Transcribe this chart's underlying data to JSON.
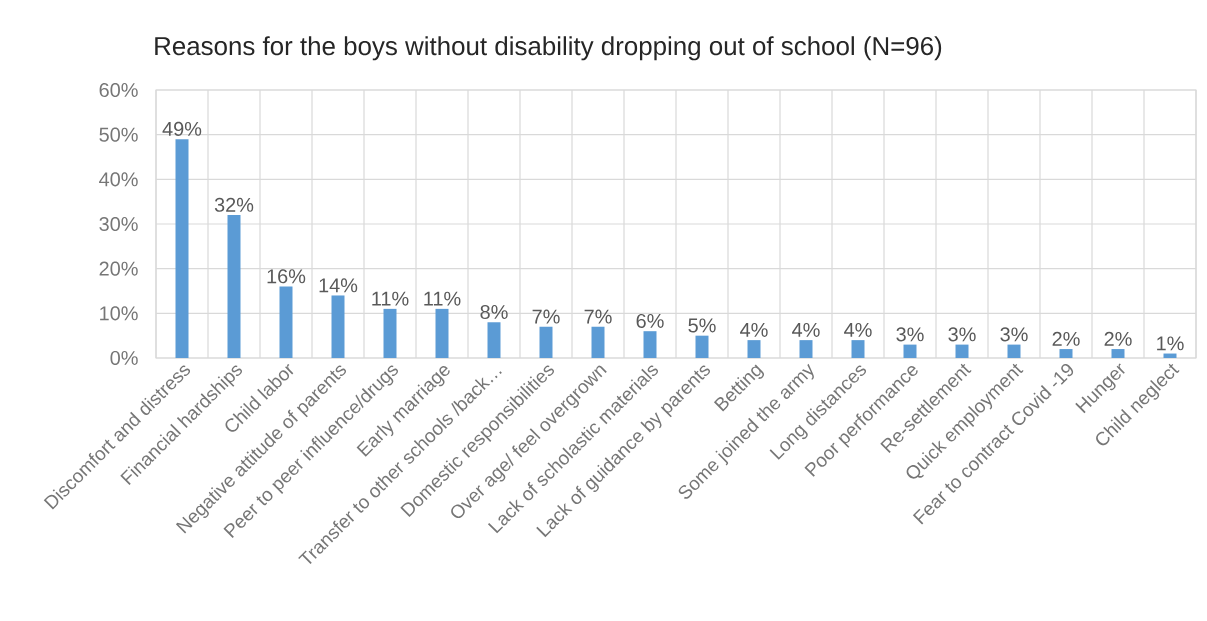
{
  "chart_data": {
    "type": "bar",
    "title": "Reasons for the boys without disability dropping out of school (N=96)",
    "categories": [
      "Discomfort and distress",
      "Financial hardships",
      "Child labor",
      "Negative attitude of parents",
      "Peer to peer influence/drugs",
      "Early marriage",
      "Transfer to other schools /back…",
      "Domestic responsibilities",
      "Over age/ feel overgrown",
      "Lack of scholastic materials",
      "Lack of guidance by parents",
      "Betting",
      "Some joined the army",
      "Long distances",
      "Poor performance",
      "Re-settlement",
      "Quick employment",
      "Fear to contract Covid -19",
      "Hunger",
      "Child neglect"
    ],
    "values": [
      49,
      32,
      16,
      14,
      11,
      11,
      8,
      7,
      7,
      6,
      5,
      4,
      4,
      4,
      3,
      3,
      3,
      2,
      2,
      1
    ],
    "value_labels": [
      "49%",
      "32%",
      "16%",
      "14%",
      "11%",
      "11%",
      "8%",
      "7%",
      "7%",
      "6%",
      "5%",
      "4%",
      "4%",
      "4%",
      "3%",
      "3%",
      "3%",
      "2%",
      "2%",
      "1%"
    ],
    "color": "#5b9bd5",
    "ylim": [
      0,
      60
    ],
    "yticks": [
      {
        "value": 0,
        "label": "0%"
      },
      {
        "value": 10,
        "label": "10%"
      },
      {
        "value": 20,
        "label": "20%"
      },
      {
        "value": 30,
        "label": "30%"
      },
      {
        "value": 40,
        "label": "40%"
      },
      {
        "value": 50,
        "label": "50%"
      },
      {
        "value": 60,
        "label": "60%"
      }
    ],
    "grid": true
  }
}
